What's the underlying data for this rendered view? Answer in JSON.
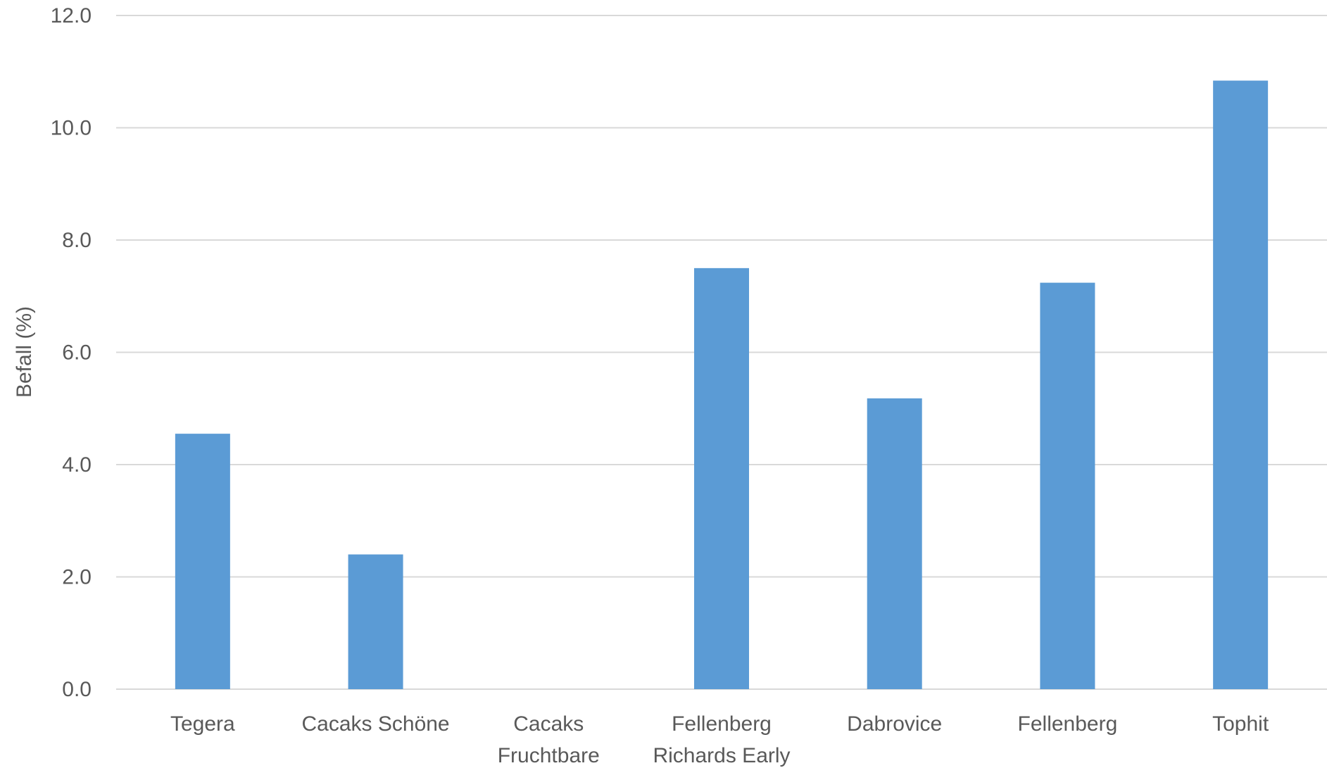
{
  "chart_data": {
    "type": "bar",
    "title": "",
    "xlabel": "",
    "ylabel": "Befall (%)",
    "ylim": [
      0,
      12
    ],
    "yticks": [
      "0.0",
      "2.0",
      "4.0",
      "6.0",
      "8.0",
      "10.0",
      "12.0"
    ],
    "categories": [
      [
        "Tegera"
      ],
      [
        "Cacaks Schöne"
      ],
      [
        "Cacaks",
        "Fruchtbare"
      ],
      [
        "Fellenberg",
        "Richards Early"
      ],
      [
        "Dabrovice"
      ],
      [
        "Fellenberg"
      ],
      [
        "Tophit"
      ]
    ],
    "values": [
      4.55,
      2.4,
      0,
      7.5,
      5.18,
      7.24,
      10.84
    ],
    "grid": true,
    "legend": "none",
    "colors": {
      "bar": "#5b9bd5",
      "grid": "#d9d9d9",
      "text": "#595959"
    }
  }
}
